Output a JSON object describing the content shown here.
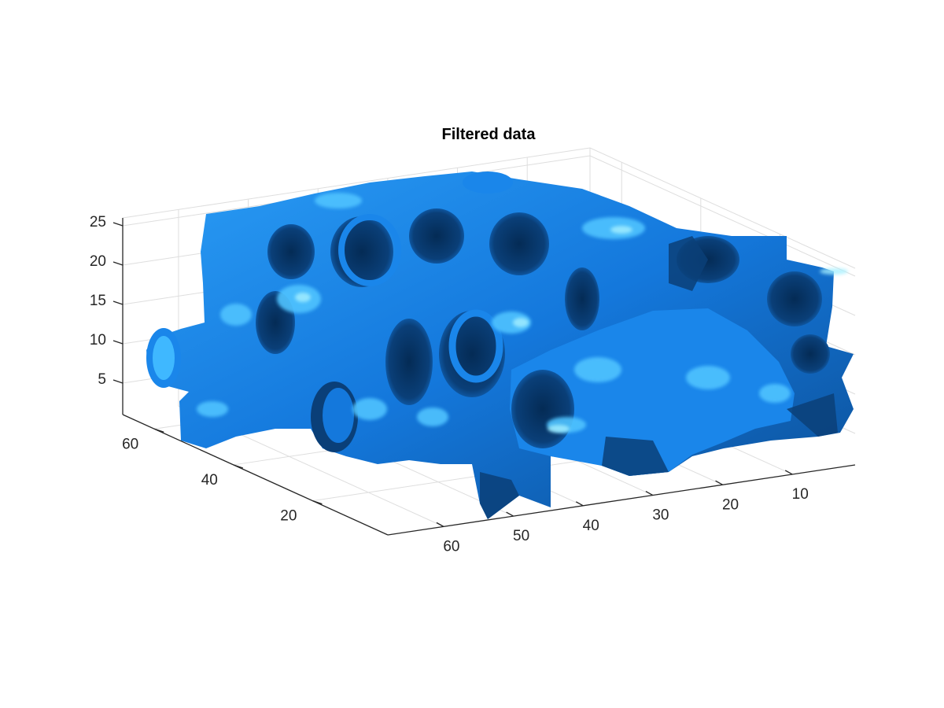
{
  "chart_data": {
    "type": "isosurface",
    "title": "Filtered data",
    "xlabel": "",
    "ylabel": "",
    "zlabel": "",
    "x_ticks": [
      10,
      20,
      30,
      40,
      50,
      60
    ],
    "y_ticks": [
      20,
      40,
      60
    ],
    "z_ticks": [
      5,
      10,
      15,
      20,
      25
    ],
    "xlim": [
      1,
      68
    ],
    "ylim": [
      1,
      68
    ],
    "zlim": [
      1,
      26
    ],
    "grid": true,
    "colors": {
      "surface_dark": "#0a3f78",
      "surface_mid": "#1272d4",
      "surface_base": "#1a86ea",
      "surface_light": "#3fb8ff",
      "surface_highlight": "#8fe6ff",
      "grid": "#dedede",
      "axis": "#262626"
    }
  }
}
